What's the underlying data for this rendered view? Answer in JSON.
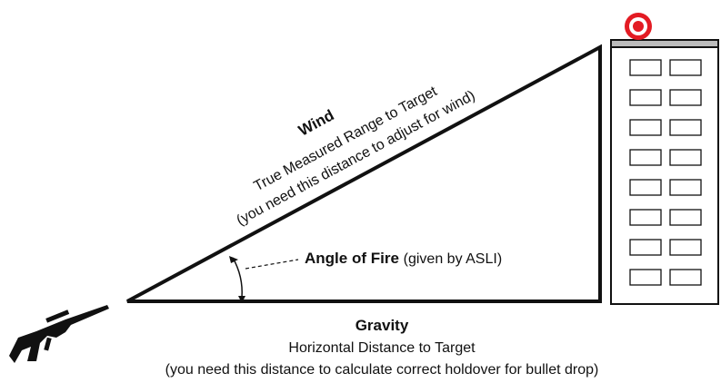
{
  "wind": {
    "title": "Wind",
    "line1": "True Measured Range to Target",
    "line2": "(you need this distance to adjust for wind)"
  },
  "angle": {
    "title": "Angle of Fire",
    "note": "(given by ASLI)"
  },
  "gravity": {
    "title": "Gravity",
    "line1": "Horizontal Distance to Target",
    "line2": "(you need this distance to calculate correct holdover for bullet drop)"
  }
}
